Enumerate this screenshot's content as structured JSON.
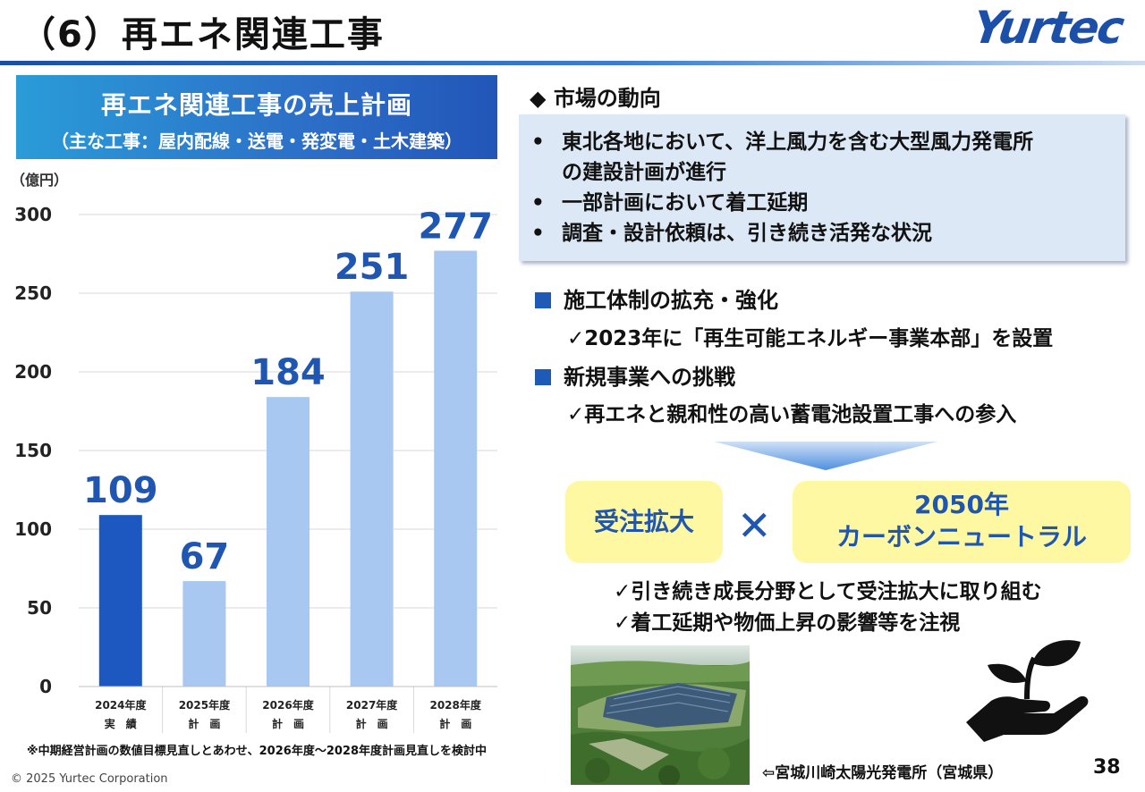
{
  "header": {
    "title": "（6）再エネ関連工事",
    "logo": "Yurtec"
  },
  "chart_panel": {
    "header_line1": "再エネ関連工事の売上計画",
    "header_line2": "（主な工事：屋内配線・送電・発変電・土木建築）",
    "unit": "（億円）",
    "footnote": "※中期経営計画の数値目標見直しとあわせ、2026年度～2028年度計画見直しを検討中"
  },
  "chart_data": {
    "type": "bar",
    "categories": [
      "2024年度",
      "2025年度",
      "2026年度",
      "2027年度",
      "2028年度"
    ],
    "category_sublabels": [
      "実　績",
      "計　画",
      "計　画",
      "計　画",
      "計　画"
    ],
    "values": [
      109,
      67,
      184,
      251,
      277
    ],
    "data_labels": [
      "109",
      "67",
      "184",
      "251",
      "277"
    ],
    "ylim": [
      0,
      300
    ],
    "yticks": [
      0,
      50,
      100,
      150,
      200,
      250,
      300
    ],
    "ytick_labels": [
      "0",
      "50",
      "100",
      "150",
      "200",
      "250",
      "300"
    ],
    "grid": true,
    "colors": {
      "actual": "#1d58c0",
      "plan": "#a9c8f1",
      "label": "#1f56b2"
    }
  },
  "market": {
    "heading": "◆ 市場の動向",
    "bullets": [
      "東北各地において、洋上風力を含む大型風力発電所",
      "の建設計画が進行",
      "一部計画において着工延期",
      "調査・設計依頼は、引き続き活発な状況"
    ]
  },
  "sections": [
    {
      "heading": "施工体制の拡充・強化",
      "check": "✓2023年に「再生可能エネルギー事業本部」を設置"
    },
    {
      "heading": "新規事業への挑戦",
      "check": "✓再エネと親和性の高い蓄電池設置工事への参入"
    }
  ],
  "summary": {
    "box_left": "受注拡大",
    "times": "✕",
    "box_right_line1": "2050年",
    "box_right_line2": "カーボンニュートラル",
    "checks": [
      "✓引き続き成長分野として受注拡大に取り組む",
      "✓着工延期や物価上昇の影響等を注視"
    ]
  },
  "photo_caption": "⇦宮城川崎太陽光発電所（宮城県）",
  "page_number": "38",
  "copyright": "© 2025 Yurtec Corporation",
  "icons": [
    "plant-hand-icon",
    "solar-farm-photo"
  ],
  "accent_color": "#1f56b2"
}
